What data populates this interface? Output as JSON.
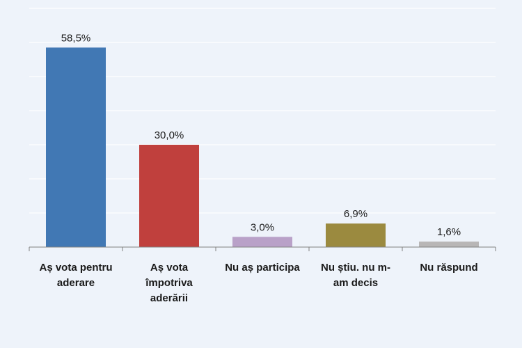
{
  "chart_data": {
    "type": "bar",
    "categories": [
      [
        "Aș vota pentru",
        "aderare"
      ],
      [
        "Aș vota",
        "împotriva",
        "aderării"
      ],
      [
        "Nu aș participa"
      ],
      [
        "Nu știu. nu m-",
        "am decis"
      ],
      [
        "Nu răspund"
      ]
    ],
    "values": [
      58.5,
      30.0,
      3.0,
      6.9,
      1.6
    ],
    "value_labels": [
      "58,5%",
      "30,0%",
      "3,0%",
      "6,9%",
      "1,6%"
    ],
    "colors": [
      "#4178b4",
      "#c0403d",
      "#b9a1c8",
      "#9b8a3f",
      "#b8b6b6"
    ],
    "title": "",
    "xlabel": "",
    "ylabel": "",
    "ylim": [
      0,
      70
    ],
    "grid": true,
    "legend": "none"
  }
}
